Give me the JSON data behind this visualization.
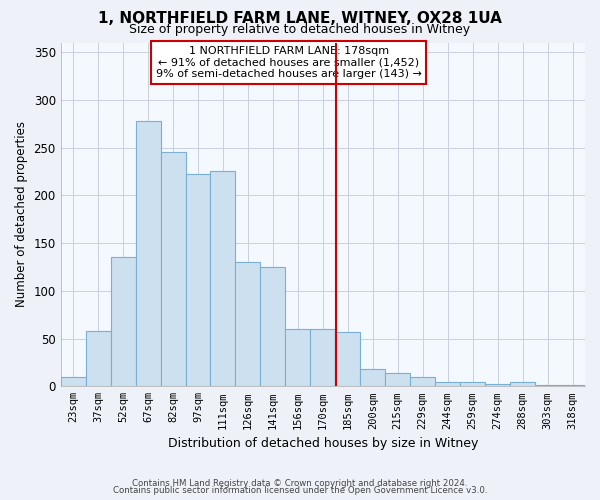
{
  "title": "1, NORTHFIELD FARM LANE, WITNEY, OX28 1UA",
  "subtitle": "Size of property relative to detached houses in Witney",
  "xlabel": "Distribution of detached houses by size in Witney",
  "ylabel": "Number of detached properties",
  "categories": [
    "23sqm",
    "37sqm",
    "52sqm",
    "67sqm",
    "82sqm",
    "97sqm",
    "111sqm",
    "126sqm",
    "141sqm",
    "156sqm",
    "170sqm",
    "185sqm",
    "200sqm",
    "215sqm",
    "229sqm",
    "244sqm",
    "259sqm",
    "274sqm",
    "288sqm",
    "303sqm",
    "318sqm"
  ],
  "values": [
    10,
    58,
    135,
    278,
    245,
    222,
    225,
    130,
    125,
    60,
    60,
    57,
    18,
    14,
    10,
    5,
    5,
    2,
    5,
    1,
    1
  ],
  "bar_color": "#cde0f0",
  "bar_edge_color": "#7aafd4",
  "vline_color": "#cc0000",
  "annotation_line1": "1 NORTHFIELD FARM LANE: 178sqm",
  "annotation_line2": "← 91% of detached houses are smaller (1,452)",
  "annotation_line3": "9% of semi-detached houses are larger (143) →",
  "ylim": [
    0,
    360
  ],
  "yticks": [
    0,
    50,
    100,
    150,
    200,
    250,
    300,
    350
  ],
  "footer1": "Contains HM Land Registry data © Crown copyright and database right 2024.",
  "footer2": "Contains public sector information licensed under the Open Government Licence v3.0.",
  "bg_color": "#eef2f8",
  "plot_bg_color": "#f4f8ff"
}
